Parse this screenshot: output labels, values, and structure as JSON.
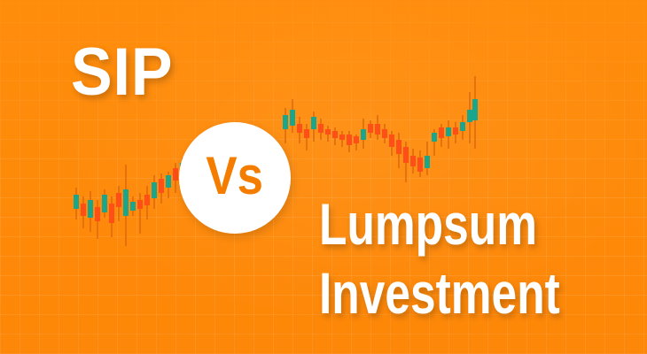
{
  "title": {
    "left": "SIP",
    "versus": "Vs",
    "right_line1": "Lumpsum",
    "right_line2": "Investment"
  },
  "colors": {
    "background": "#ff8c0a",
    "text": "#ffffff",
    "versus_text": "#f47d00",
    "candle_up": "#1aa58d",
    "candle_down": "#ff4e17",
    "wick": "#d8620e"
  }
}
